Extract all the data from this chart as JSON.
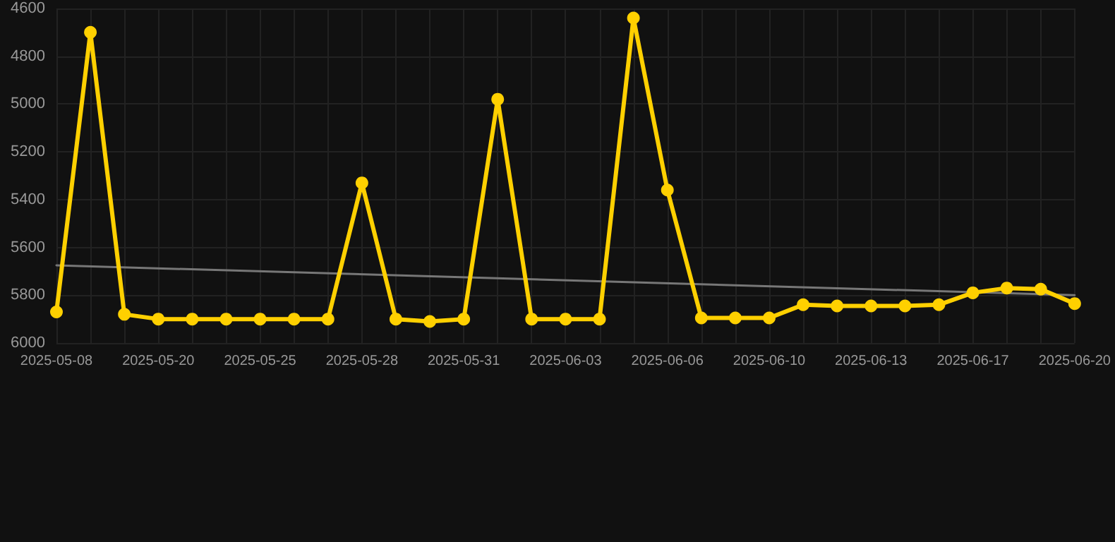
{
  "chart_data": {
    "type": "line",
    "categories": [
      "2025-05-08",
      null,
      null,
      "2025-05-20",
      null,
      null,
      "2025-05-25",
      null,
      null,
      "2025-05-28",
      null,
      null,
      "2025-05-31",
      null,
      null,
      "2025-06-03",
      null,
      null,
      "2025-06-06",
      null,
      null,
      "2025-06-10",
      null,
      null,
      "2025-06-13",
      null,
      null,
      "2025-06-17",
      null,
      null,
      "2025-06-20"
    ],
    "series": [
      {
        "color": "#ffd000",
        "marker": "circle",
        "values": [
          5870,
          4700,
          5880,
          5900,
          5900,
          5900,
          5900,
          5900,
          5900,
          5330,
          5900,
          5910,
          5900,
          4980,
          5900,
          5900,
          5900,
          4640,
          5360,
          5895,
          5895,
          5895,
          5840,
          5845,
          5845,
          5845,
          5840,
          5790,
          5770,
          5775,
          5835
        ]
      },
      {
        "color": "#777777",
        "marker": "none",
        "values": [
          5675,
          null,
          null,
          null,
          null,
          null,
          null,
          null,
          null,
          null,
          null,
          null,
          null,
          null,
          null,
          null,
          null,
          null,
          null,
          null,
          null,
          null,
          null,
          null,
          null,
          null,
          null,
          null,
          null,
          null,
          5800
        ]
      }
    ],
    "ylim": [
      6000,
      4600
    ],
    "yticks": [
      4600,
      4800,
      5000,
      5200,
      5400,
      5600,
      5800,
      6000
    ],
    "grid": true
  }
}
